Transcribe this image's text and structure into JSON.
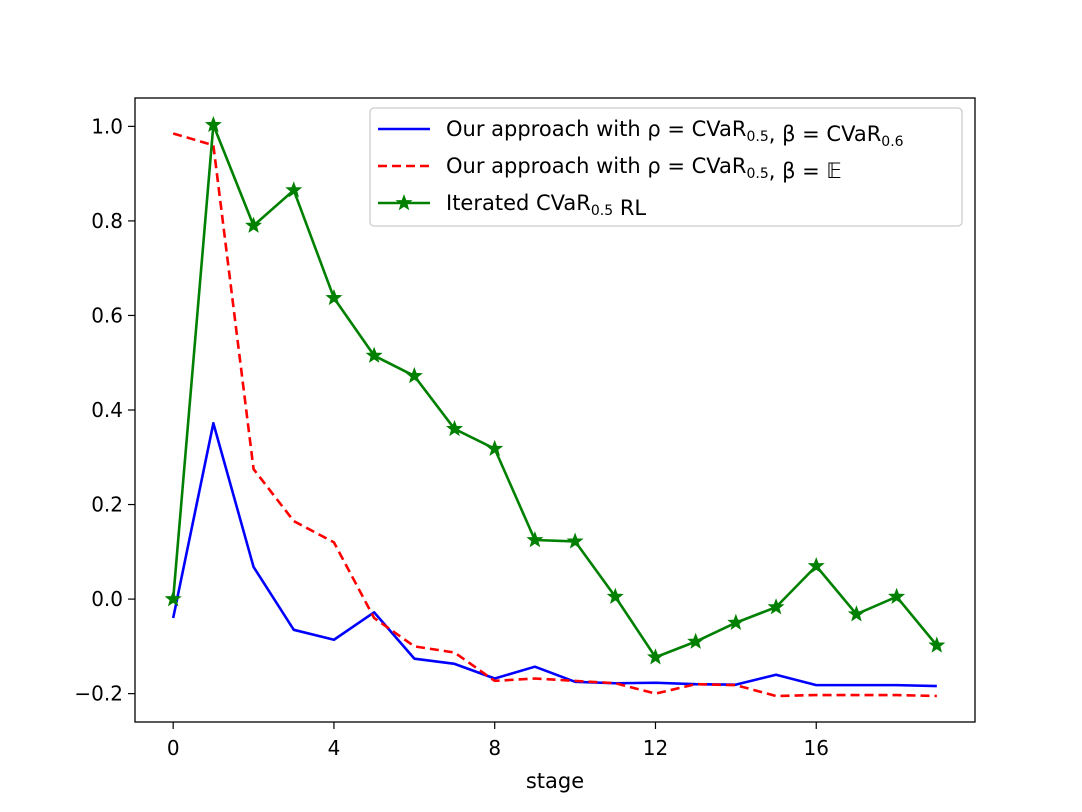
{
  "chart_data": {
    "type": "line",
    "title": "",
    "xlabel": "stage",
    "ylabel": "",
    "xlim": [
      -0.95,
      19.95
    ],
    "ylim": [
      -0.26,
      1.06
    ],
    "xticks": [
      0,
      4,
      8,
      12,
      16
    ],
    "yticks": [
      -0.2,
      0.0,
      0.2,
      0.4,
      0.6,
      0.8,
      1.0
    ],
    "xtick_labels": [
      "0",
      "4",
      "8",
      "12",
      "16"
    ],
    "ytick_labels": [
      "−0.2",
      "0.0",
      "0.2",
      "0.4",
      "0.6",
      "0.8",
      "1.0"
    ],
    "grid": false,
    "legend_position": "top-right",
    "x": [
      0,
      1,
      2,
      3,
      4,
      5,
      6,
      7,
      8,
      9,
      10,
      11,
      12,
      13,
      14,
      15,
      16,
      17,
      18,
      19
    ],
    "series": [
      {
        "name": "Our approach with ρ = CVaR0.5, β = CVaR0.6",
        "legend_main": "Our approach with ρ = CVaR",
        "legend_sub1": "0.5",
        "legend_mid": ", β = CVaR",
        "legend_sub2": "0.6",
        "legend_end": "",
        "color": "#0000ff",
        "dash": "solid",
        "marker": "none",
        "values": [
          -0.04,
          0.372,
          0.068,
          -0.065,
          -0.086,
          -0.028,
          -0.126,
          -0.137,
          -0.168,
          -0.143,
          -0.175,
          -0.178,
          -0.177,
          -0.18,
          -0.181,
          -0.16,
          -0.182,
          -0.182,
          -0.182,
          -0.184
        ]
      },
      {
        "name": "Our approach with ρ = CVaR0.5, β = 𝔼",
        "legend_main": "Our approach with ρ = CVaR",
        "legend_sub1": "0.5",
        "legend_mid": ", β = 𝔼",
        "legend_sub2": "",
        "legend_end": "",
        "color": "#ff0000",
        "dash": "dashed",
        "marker": "none",
        "values": [
          0.985,
          0.96,
          0.275,
          0.165,
          0.12,
          -0.04,
          -0.1,
          -0.113,
          -0.173,
          -0.168,
          -0.173,
          -0.178,
          -0.2,
          -0.18,
          -0.182,
          -0.205,
          -0.203,
          -0.203,
          -0.203,
          -0.205
        ]
      },
      {
        "name": "Iterated CVaR0.5 RL",
        "legend_main": "Iterated CVaR",
        "legend_sub1": "0.5",
        "legend_mid": " RL",
        "legend_sub2": "",
        "legend_end": "",
        "color": "#008000",
        "dash": "solid",
        "marker": "star",
        "values": [
          0.0,
          1.003,
          0.79,
          0.865,
          0.637,
          0.515,
          0.472,
          0.36,
          0.318,
          0.125,
          0.122,
          0.005,
          -0.123,
          -0.09,
          -0.05,
          -0.017,
          0.07,
          -0.032,
          0.005,
          -0.098
        ]
      }
    ]
  }
}
